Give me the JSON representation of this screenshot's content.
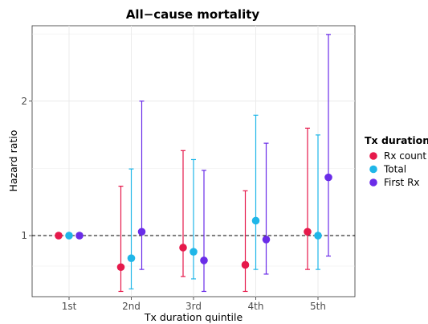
{
  "chart_data": {
    "type": "scatter",
    "title": "All−cause mortality",
    "xlabel": "Tx duration quintile",
    "ylabel": "Hazard ratio",
    "categories": [
      "1st",
      "2nd",
      "3rd",
      "4th",
      "5th"
    ],
    "y_scale": "log",
    "ylim": [
      0.73,
      2.95
    ],
    "y_ticks": [
      1,
      2
    ],
    "y_tick_labels": [
      "1",
      "2"
    ],
    "reference_line": {
      "y": 1,
      "style": "dashed"
    },
    "grid": true,
    "legend": {
      "title": "Tx duration",
      "placement": "right"
    },
    "series": [
      {
        "name": "Rx count",
        "color": "#E6194B",
        "values": [
          1.0,
          0.85,
          0.94,
          0.86,
          1.02
        ],
        "lower": [
          1.0,
          0.75,
          0.81,
          0.75,
          0.84
        ],
        "upper": [
          1.0,
          1.29,
          1.55,
          1.26,
          1.74
        ]
      },
      {
        "name": "Total",
        "color": "#1FB6E8",
        "values": [
          1.0,
          0.89,
          0.92,
          1.08,
          1.0
        ],
        "lower": [
          1.0,
          0.76,
          0.8,
          0.84,
          0.84
        ],
        "upper": [
          1.0,
          1.41,
          1.48,
          1.86,
          1.68
        ]
      },
      {
        "name": "First Rx",
        "color": "#6A2CE8",
        "values": [
          1.0,
          1.02,
          0.88,
          0.98,
          1.35
        ],
        "lower": [
          1.0,
          0.84,
          0.75,
          0.82,
          0.9
        ],
        "upper": [
          1.0,
          2.0,
          1.4,
          1.61,
          2.82
        ]
      }
    ]
  }
}
